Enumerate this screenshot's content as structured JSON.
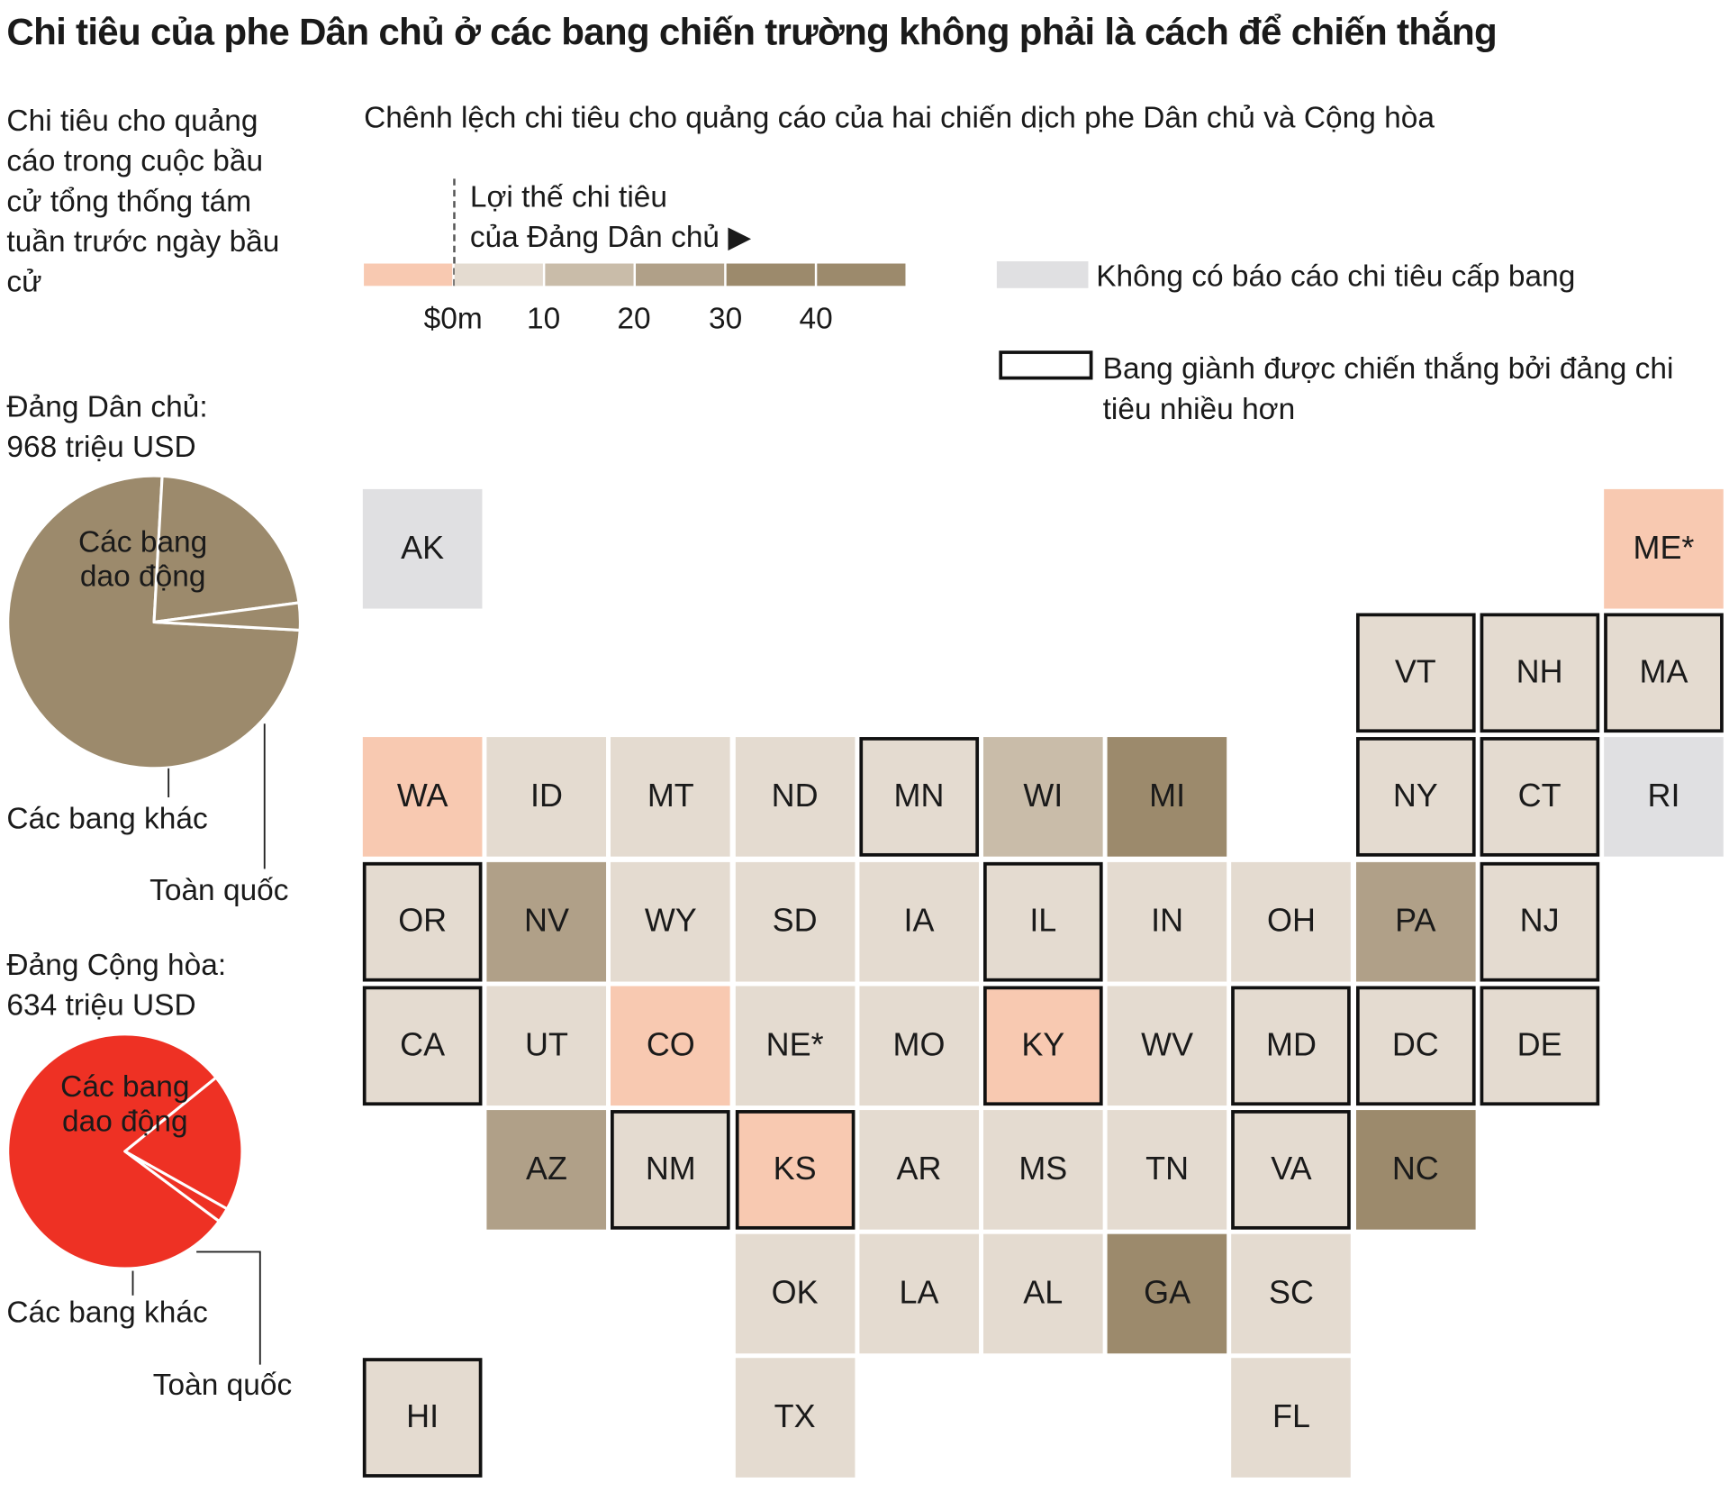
{
  "title": "Chi tiêu của phe Dân chủ ở các bang chiến trường không phải là cách để chiến thắng",
  "left_intro": "Chi tiêu cho quảng cáo trong cuộc bầu cử tổng thống tám tuần trước ngày bầu cử",
  "map_subtitle": "Chênh lệch chi tiêu cho quảng cáo của hai chiến dịch phe Dân chủ và Cộng hòa",
  "legend": {
    "advantage_line1": "Lợi thế chi tiêu",
    "advantage_line2": "của Đảng Dân chủ ▶",
    "ticks": [
      "$0m",
      "10",
      "20",
      "30",
      "40"
    ],
    "bin_colors": [
      "#f8c9b1",
      "#e4dbd0",
      "#c9bca9",
      "#b0a088",
      "#9c8a6c",
      "#9c8a6c"
    ],
    "no_data_color": "#e0e0e2",
    "no_data_label": "Không có báo cáo chi tiêu cấp bang",
    "win_label": "Bang giành được chiến thắng bởi đảng chi tiêu nhiều hơn"
  },
  "dem": {
    "label_line1": "Đảng Dân chủ:",
    "label_line2": "968 triệu USD",
    "color": "#9c8a6c",
    "swing_label_line1": "Các bang",
    "swing_label_line2": "dao động",
    "other_label": "Các bang khác",
    "national_label": "Toàn quốc"
  },
  "rep": {
    "label_line1": "Đảng Cộng hòa:",
    "label_line2": "634 triệu USD",
    "color": "#ee3124",
    "swing_label_line1": "Các bang",
    "swing_label_line2": "dao động",
    "other_label": "Các bang khác",
    "national_label": "Toàn quốc"
  },
  "chart_data": [
    {
      "type": "pie",
      "title": "Đảng Dân chủ: 968 triệu USD",
      "labels": [
        "Các bang dao động",
        "Toàn quốc",
        "Các bang khác"
      ],
      "values": [
        75,
        22,
        3
      ]
    },
    {
      "type": "pie",
      "title": "Đảng Cộng hòa: 634 triệu USD",
      "labels": [
        "Các bang dao động",
        "Toàn quốc",
        "Các bang khác"
      ],
      "values": [
        79,
        19,
        2
      ]
    },
    {
      "type": "heatmap",
      "title": "Chênh lệch chi tiêu cho quảng cáo của hai chiến dịch phe Dân chủ và Cộng hòa",
      "bins": [
        "<$0m",
        "$0m–10",
        "10–20",
        "20–30",
        "30–40",
        ">40"
      ],
      "states": [
        {
          "code": "AK",
          "col": 0,
          "row": 0,
          "bin": null,
          "won_by_bigger_spender": false
        },
        {
          "code": "ME*",
          "col": 10,
          "row": 0,
          "bin": 0,
          "won_by_bigger_spender": false
        },
        {
          "code": "VT",
          "col": 8,
          "row": 1,
          "bin": 1,
          "won_by_bigger_spender": true
        },
        {
          "code": "NH",
          "col": 9,
          "row": 1,
          "bin": 1,
          "won_by_bigger_spender": true
        },
        {
          "code": "MA",
          "col": 10,
          "row": 1,
          "bin": 1,
          "won_by_bigger_spender": true
        },
        {
          "code": "WA",
          "col": 0,
          "row": 2,
          "bin": 0,
          "won_by_bigger_spender": false
        },
        {
          "code": "ID",
          "col": 1,
          "row": 2,
          "bin": 1,
          "won_by_bigger_spender": false
        },
        {
          "code": "MT",
          "col": 2,
          "row": 2,
          "bin": 1,
          "won_by_bigger_spender": false
        },
        {
          "code": "ND",
          "col": 3,
          "row": 2,
          "bin": 1,
          "won_by_bigger_spender": false
        },
        {
          "code": "MN",
          "col": 4,
          "row": 2,
          "bin": 1,
          "won_by_bigger_spender": true
        },
        {
          "code": "WI",
          "col": 5,
          "row": 2,
          "bin": 2,
          "won_by_bigger_spender": false
        },
        {
          "code": "MI",
          "col": 6,
          "row": 2,
          "bin": 4,
          "won_by_bigger_spender": false
        },
        {
          "code": "NY",
          "col": 8,
          "row": 2,
          "bin": 1,
          "won_by_bigger_spender": true
        },
        {
          "code": "CT",
          "col": 9,
          "row": 2,
          "bin": 1,
          "won_by_bigger_spender": true
        },
        {
          "code": "RI",
          "col": 10,
          "row": 2,
          "bin": null,
          "won_by_bigger_spender": false
        },
        {
          "code": "OR",
          "col": 0,
          "row": 3,
          "bin": 1,
          "won_by_bigger_spender": true
        },
        {
          "code": "NV",
          "col": 1,
          "row": 3,
          "bin": 3,
          "won_by_bigger_spender": false
        },
        {
          "code": "WY",
          "col": 2,
          "row": 3,
          "bin": 1,
          "won_by_bigger_spender": false
        },
        {
          "code": "SD",
          "col": 3,
          "row": 3,
          "bin": 1,
          "won_by_bigger_spender": false
        },
        {
          "code": "IA",
          "col": 4,
          "row": 3,
          "bin": 1,
          "won_by_bigger_spender": false
        },
        {
          "code": "IL",
          "col": 5,
          "row": 3,
          "bin": 1,
          "won_by_bigger_spender": true
        },
        {
          "code": "IN",
          "col": 6,
          "row": 3,
          "bin": 1,
          "won_by_bigger_spender": false
        },
        {
          "code": "OH",
          "col": 7,
          "row": 3,
          "bin": 1,
          "won_by_bigger_spender": false
        },
        {
          "code": "PA",
          "col": 8,
          "row": 3,
          "bin": 3,
          "won_by_bigger_spender": false
        },
        {
          "code": "NJ",
          "col": 9,
          "row": 3,
          "bin": 1,
          "won_by_bigger_spender": true
        },
        {
          "code": "CA",
          "col": 0,
          "row": 4,
          "bin": 1,
          "won_by_bigger_spender": true
        },
        {
          "code": "UT",
          "col": 1,
          "row": 4,
          "bin": 1,
          "won_by_bigger_spender": false
        },
        {
          "code": "CO",
          "col": 2,
          "row": 4,
          "bin": 0,
          "won_by_bigger_spender": false
        },
        {
          "code": "NE*",
          "col": 3,
          "row": 4,
          "bin": 1,
          "won_by_bigger_spender": false
        },
        {
          "code": "MO",
          "col": 4,
          "row": 4,
          "bin": 1,
          "won_by_bigger_spender": false
        },
        {
          "code": "KY",
          "col": 5,
          "row": 4,
          "bin": 0,
          "won_by_bigger_spender": true
        },
        {
          "code": "WV",
          "col": 6,
          "row": 4,
          "bin": 1,
          "won_by_bigger_spender": false
        },
        {
          "code": "MD",
          "col": 7,
          "row": 4,
          "bin": 1,
          "won_by_bigger_spender": true
        },
        {
          "code": "DC",
          "col": 8,
          "row": 4,
          "bin": 1,
          "won_by_bigger_spender": true
        },
        {
          "code": "DE",
          "col": 9,
          "row": 4,
          "bin": 1,
          "won_by_bigger_spender": true
        },
        {
          "code": "AZ",
          "col": 1,
          "row": 5,
          "bin": 3,
          "won_by_bigger_spender": false
        },
        {
          "code": "NM",
          "col": 2,
          "row": 5,
          "bin": 1,
          "won_by_bigger_spender": true
        },
        {
          "code": "KS",
          "col": 3,
          "row": 5,
          "bin": 0,
          "won_by_bigger_spender": true
        },
        {
          "code": "AR",
          "col": 4,
          "row": 5,
          "bin": 1,
          "won_by_bigger_spender": false
        },
        {
          "code": "MS",
          "col": 5,
          "row": 5,
          "bin": 1,
          "won_by_bigger_spender": false
        },
        {
          "code": "TN",
          "col": 6,
          "row": 5,
          "bin": 1,
          "won_by_bigger_spender": false
        },
        {
          "code": "VA",
          "col": 7,
          "row": 5,
          "bin": 1,
          "won_by_bigger_spender": true
        },
        {
          "code": "NC",
          "col": 8,
          "row": 5,
          "bin": 4,
          "won_by_bigger_spender": false
        },
        {
          "code": "OK",
          "col": 3,
          "row": 6,
          "bin": 1,
          "won_by_bigger_spender": false
        },
        {
          "code": "LA",
          "col": 4,
          "row": 6,
          "bin": 1,
          "won_by_bigger_spender": false
        },
        {
          "code": "AL",
          "col": 5,
          "row": 6,
          "bin": 1,
          "won_by_bigger_spender": false
        },
        {
          "code": "GA",
          "col": 6,
          "row": 6,
          "bin": 4,
          "won_by_bigger_spender": false
        },
        {
          "code": "SC",
          "col": 7,
          "row": 6,
          "bin": 1,
          "won_by_bigger_spender": false
        },
        {
          "code": "HI",
          "col": 0,
          "row": 7,
          "bin": 1,
          "won_by_bigger_spender": true
        },
        {
          "code": "TX",
          "col": 3,
          "row": 7,
          "bin": 1,
          "won_by_bigger_spender": false
        },
        {
          "code": "FL",
          "col": 7,
          "row": 7,
          "bin": 1,
          "won_by_bigger_spender": false
        }
      ]
    }
  ]
}
